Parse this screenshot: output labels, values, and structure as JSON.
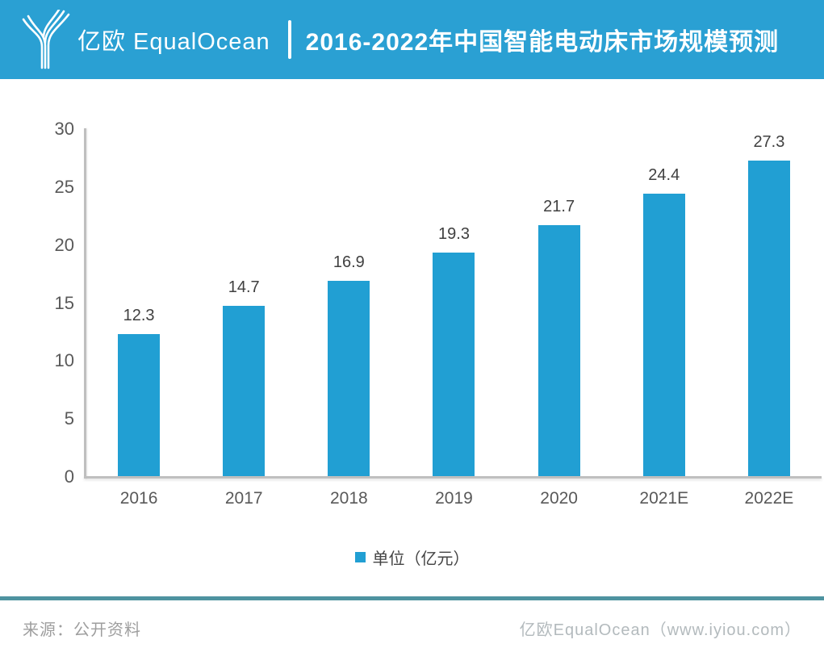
{
  "header": {
    "brand": "亿欧 EqualOcean",
    "title": "2016-2022年中国智能电动床市场规模预测"
  },
  "chart_data": {
    "type": "bar",
    "title": "2016-2022年中国智能电动床市场规模预测",
    "categories": [
      "2016",
      "2017",
      "2018",
      "2019",
      "2020",
      "2021E",
      "2022E"
    ],
    "values": [
      12.3,
      14.7,
      16.9,
      19.3,
      21.7,
      24.4,
      27.3
    ],
    "legend": "单位（亿元）",
    "legend_position": "bottom",
    "xlabel": "",
    "ylabel": "",
    "ylim": [
      0,
      30
    ],
    "yticks": [
      0,
      5,
      10,
      15,
      20,
      25,
      30
    ],
    "grid": false,
    "bar_color": "#219fd3"
  },
  "footer": {
    "source": "来源：公开资料",
    "credit": "亿欧EqualOcean（www.iyiou.com）"
  },
  "colors": {
    "header_bg": "#2aa0d3",
    "bar": "#219fd3",
    "axis_line": "#bfbfbf",
    "tick_text": "#595959",
    "value_text": "#404040",
    "footer_divider": "#4e93a0"
  }
}
